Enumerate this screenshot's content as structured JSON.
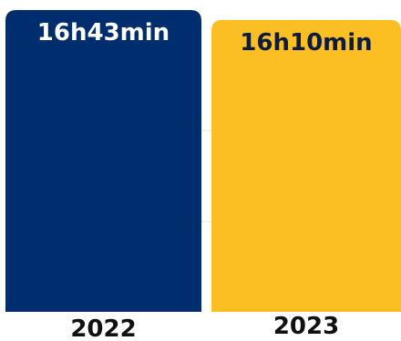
{
  "chart_data": {
    "type": "bar",
    "categories": [
      "2022",
      "2023"
    ],
    "values": [
      16.717,
      16.167
    ],
    "value_labels": [
      "16h43min",
      "16h10min"
    ],
    "colors": [
      "#002d6e",
      "#fbbf24"
    ],
    "label_colors": [
      "#ffffff",
      "#0d1b3d"
    ],
    "grid": true,
    "grid_color": "#e3e3e3"
  }
}
